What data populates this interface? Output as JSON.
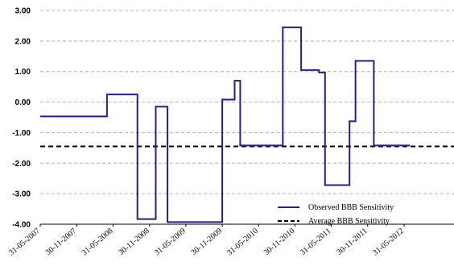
{
  "chart_data": {
    "type": "line",
    "x_ticks": [
      "31-05-2007",
      "30-11-2007",
      "31-05-2008",
      "30-11-2008",
      "31-05-2009",
      "30-11-2009",
      "31-05-2010",
      "30-11-2010",
      "31-05-2011",
      "30-11-2011",
      "31-05-2012"
    ],
    "ylim": [
      -4.0,
      3.0
    ],
    "y_ticks": [
      "3.00",
      "2.00",
      "1.00",
      "0.00",
      "-1.00",
      "-2.00",
      "-3.00",
      "-4.00"
    ],
    "grid": "horizontal dashed",
    "legend_position": "bottom-right",
    "series": [
      {
        "name": "Observed BBB Sensitivity",
        "color": "#1f1f8f",
        "style": "step",
        "points": [
          [
            "31-05-2007",
            -0.47
          ],
          [
            "30-04-2008",
            0.25
          ],
          [
            "30-09-2008",
            -3.83
          ],
          [
            "31-12-2008",
            -0.15
          ],
          [
            "28-02-2009",
            -3.93
          ],
          [
            "30-11-2009",
            0.08
          ],
          [
            "31-01-2010",
            0.7
          ],
          [
            "28-02-2010",
            -1.42
          ],
          [
            "30-09-2010",
            2.45
          ],
          [
            "31-12-2010",
            1.05
          ],
          [
            "31-03-2011",
            0.97
          ],
          [
            "30-04-2011",
            -2.72
          ],
          [
            "31-08-2011",
            -0.63
          ],
          [
            "30-09-2011",
            1.35
          ],
          [
            "31-12-2011",
            -1.42
          ],
          [
            "30-06-2012",
            -1.42
          ]
        ]
      },
      {
        "name": "Average BBB Sensitivity",
        "color": "#000000",
        "style": "dashed",
        "value": -1.45
      }
    ]
  }
}
